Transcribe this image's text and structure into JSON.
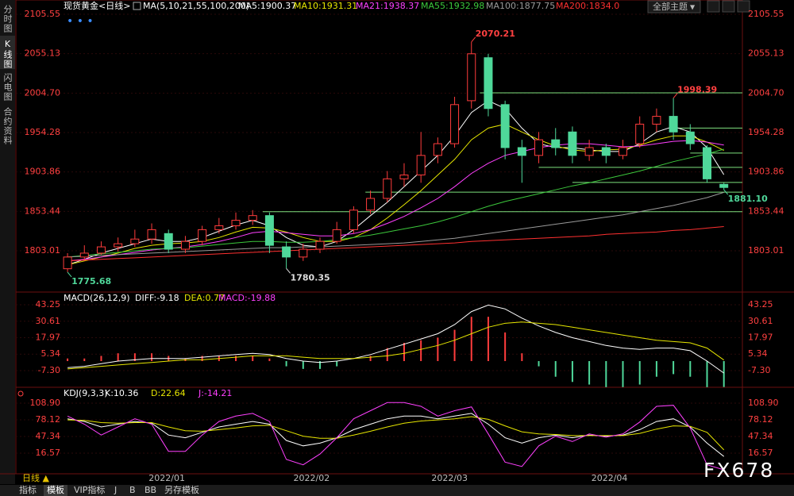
{
  "ui": {
    "sidebar": [
      "分时图",
      "K线图",
      "闪电图",
      "合约资料"
    ],
    "theme_button": "全部主题",
    "period": "日线 ▲",
    "tabs": [
      "指标",
      "模板",
      "VIP指标",
      "J",
      "B",
      "BB",
      "另存模板"
    ],
    "watermark": "FX678"
  },
  "chart_data": [
    {
      "type": "candlestick",
      "title": "现货黄金<日线>",
      "subtitle": "MA(5,10,21,55,100,200)",
      "up_color": "#ff3c3c",
      "down_color": "#4fd89a",
      "grid": true,
      "xlim": [
        -3.07,
        40.1
      ],
      "ylim": [
        1750.2,
        2115.7
      ],
      "yticks": [
        1803.01,
        1853.44,
        1903.86,
        1954.28,
        {
          "value": 2004.7,
          "label": "2004.70"
        },
        2055.13,
        2105.55
      ],
      "open": [
        1780,
        1795,
        1800,
        1808,
        1812,
        1818,
        1825,
        1805,
        1815,
        1830,
        1835,
        1842,
        1848,
        1808,
        1795,
        1805,
        1815,
        1830,
        1855,
        1870,
        1895,
        1900,
        1925,
        1940,
        1995,
        2050,
        1990,
        1935,
        1925,
        1945,
        1955,
        1925,
        1935,
        1925,
        1940,
        1965,
        1975,
        1955,
        1935,
        1888
      ],
      "high": [
        1800,
        1810,
        1815,
        1820,
        1830,
        1838,
        1830,
        1822,
        1835,
        1845,
        1852,
        1855,
        1852,
        1815,
        1812,
        1820,
        1840,
        1860,
        1880,
        1905,
        1915,
        1955,
        1948,
        2000,
        2070.21,
        2055,
        1995,
        1945,
        1955,
        1960,
        1962,
        1945,
        1940,
        1945,
        1975,
        1985,
        1998.39,
        1965,
        1938,
        1890
      ],
      "low": [
        1775.68,
        1790,
        1798,
        1802,
        1808,
        1812,
        1800,
        1800,
        1810,
        1825,
        1830,
        1836,
        1800,
        1780.35,
        1790,
        1800,
        1812,
        1825,
        1850,
        1865,
        1885,
        1890,
        1915,
        1935,
        1985,
        1975,
        1920,
        1890,
        1915,
        1925,
        1915,
        1918,
        1915,
        1920,
        1935,
        1955,
        1945,
        1932,
        1890,
        1881.1
      ],
      "close": [
        1795,
        1800,
        1808,
        1812,
        1818,
        1830,
        1805,
        1815,
        1830,
        1835,
        1842,
        1848,
        1810,
        1795,
        1805,
        1815,
        1830,
        1855,
        1870,
        1895,
        1900,
        1925,
        1940,
        1990,
        2055,
        1985,
        1935,
        1925,
        1945,
        1935,
        1925,
        1935,
        1925,
        1935,
        1965,
        1975,
        1955,
        1940,
        1895,
        1884
      ],
      "series": [
        {
          "name": "MA5:1900.37",
          "color": "#ffffff",
          "values": [
            1785,
            1792,
            1800,
            1806,
            1812,
            1818,
            1815,
            1815,
            1820,
            1828,
            1836,
            1842,
            1835,
            1820,
            1810,
            1808,
            1815,
            1830,
            1848,
            1865,
            1885,
            1905,
            1925,
            1950,
            1980,
            1995,
            1985,
            1960,
            1940,
            1935,
            1935,
            1932,
            1930,
            1930,
            1940,
            1955,
            1962,
            1955,
            1935,
            1900.37
          ]
        },
        {
          "name": "MA10:1931.31",
          "color": "#e6e600",
          "values": [
            1785,
            1790,
            1795,
            1800,
            1806,
            1810,
            1812,
            1813,
            1815,
            1820,
            1827,
            1833,
            1832,
            1827,
            1820,
            1815,
            1815,
            1820,
            1830,
            1845,
            1862,
            1880,
            1900,
            1920,
            1945,
            1960,
            1965,
            1955,
            1945,
            1937,
            1932,
            1930,
            1932,
            1933,
            1938,
            1945,
            1950,
            1950,
            1942,
            1931.31
          ]
        },
        {
          "name": "MA21:1938.37",
          "color": "#ff40ff",
          "values": [
            1790,
            1792,
            1795,
            1798,
            1801,
            1804,
            1806,
            1808,
            1811,
            1815,
            1820,
            1826,
            1828,
            1826,
            1824,
            1822,
            1822,
            1825,
            1830,
            1838,
            1847,
            1858,
            1870,
            1885,
            1902,
            1915,
            1925,
            1930,
            1935,
            1938,
            1940,
            1940,
            1938,
            1936,
            1937,
            1940,
            1943,
            1944,
            1942,
            1938.37
          ]
        },
        {
          "name": "MA55:1932.98",
          "color": "#3cc83c",
          "values": [
            1795,
            1797,
            1799,
            1801,
            1803,
            1805,
            1806,
            1807,
            1809,
            1811,
            1813,
            1815,
            1815,
            1814,
            1814,
            1815,
            1817,
            1820,
            1823,
            1827,
            1831,
            1835,
            1840,
            1846,
            1853,
            1860,
            1866,
            1871,
            1876,
            1881,
            1886,
            1890,
            1895,
            1900,
            1905,
            1911,
            1917,
            1922,
            1927,
            1932.98
          ]
        },
        {
          "name": "MA100:1877.75",
          "color": "#9a9a9a",
          "values": [
            1795,
            1796,
            1797,
            1798,
            1799,
            1800,
            1801,
            1802,
            1803,
            1804,
            1805,
            1806,
            1807,
            1807,
            1808,
            1808,
            1809,
            1810,
            1811,
            1812,
            1813,
            1815,
            1817,
            1819,
            1822,
            1825,
            1828,
            1831,
            1834,
            1837,
            1840,
            1843,
            1846,
            1849,
            1853,
            1857,
            1861,
            1866,
            1871,
            1877.75
          ]
        },
        {
          "name": "MA200:1834.0",
          "color": "#ff3030",
          "values": [
            1790,
            1791,
            1792,
            1793,
            1794,
            1795,
            1796,
            1797,
            1798,
            1799,
            1800,
            1801,
            1802,
            1803,
            1804,
            1805,
            1806,
            1807,
            1808,
            1809,
            1810,
            1811,
            1812,
            1813,
            1815,
            1816,
            1817,
            1818,
            1819,
            1820,
            1821,
            1822,
            1824,
            1825,
            1826,
            1827,
            1829,
            1830,
            1832,
            1834
          ]
        }
      ],
      "annotations": [
        {
          "x": 24,
          "value": 2070.21,
          "label": "2070.21",
          "color": "#ff4040",
          "position": "above"
        },
        {
          "x": 36,
          "value": 1998.39,
          "label": "1998.39",
          "color": "#ff4040",
          "position": "above"
        },
        {
          "x": 39,
          "value": 1881.1,
          "label": "1881.10",
          "color": "#4fd89a",
          "position": "below"
        },
        {
          "x": 0,
          "value": 1775.68,
          "label": "1775.68",
          "color": "#4fd89a",
          "position": "below"
        },
        {
          "x": 13,
          "value": 1780.35,
          "label": "1780.35",
          "color": "#dddddd",
          "position": "below"
        }
      ],
      "hlines": [
        {
          "x": 24.5,
          "value": 2005
        },
        {
          "x": 36,
          "value": 1960
        },
        {
          "x": 37,
          "value": 1928
        },
        {
          "x": 28,
          "value": 1909.7
        },
        {
          "x": 30,
          "value": 1890.4
        },
        {
          "x": 17.7,
          "value": 1878
        },
        {
          "x": 11.6,
          "value": 1853
        }
      ],
      "hline_color": "#7ee07e"
    },
    {
      "type": "macd",
      "title": "MACD(26,12,9)",
      "grid": true,
      "xlim": [
        -3.07,
        40.1
      ],
      "ylim": [
        -21.31,
        51.78
      ],
      "yticks": [
        {
          "value": -7.3,
          "label": "-7.30"
        },
        5.34,
        17.97,
        30.61,
        43.25
      ],
      "series": [
        {
          "name": "DIFF:-9.18",
          "color": "#ffffff",
          "values": [
            -5,
            -4,
            -2,
            0,
            1,
            2,
            2,
            2,
            3,
            4,
            5,
            6,
            5,
            2,
            0,
            -1,
            0,
            2,
            5,
            9,
            13,
            17,
            21,
            28,
            38,
            43,
            40,
            33,
            27,
            22,
            18,
            15,
            12,
            10,
            9,
            10,
            10,
            8,
            0,
            -9.18
          ]
        },
        {
          "name": "DEA:0.77",
          "color": "#e6e600",
          "values": [
            -6,
            -5,
            -4,
            -3,
            -2,
            -1,
            0,
            1,
            1,
            2,
            3,
            4,
            4,
            4,
            3,
            2,
            2,
            2,
            3,
            4,
            6,
            9,
            12,
            16,
            21,
            26,
            29,
            30,
            29,
            28,
            26,
            24,
            22,
            20,
            18,
            16,
            15,
            14,
            10,
            0.77
          ]
        },
        {
          "name": "MACD:-19.88",
          "color": "#ff40ff",
          "kind": "bar",
          "up_color": "#ff3c3c",
          "down_color": "#4fd89a",
          "values": [
            2,
            2,
            4,
            6,
            6,
            6,
            4,
            2,
            4,
            4,
            4,
            4,
            2,
            -4,
            -6,
            -6,
            -4,
            0,
            4,
            10,
            14,
            16,
            18,
            24,
            34,
            34,
            22,
            6,
            -4,
            -12,
            -16,
            -18,
            -20,
            -20,
            -18,
            -12,
            -10,
            -12,
            -20,
            -19.88
          ]
        }
      ]
    },
    {
      "type": "line",
      "title": "KDJ(9,3,3)",
      "grid": true,
      "xlim": [
        -3.07,
        40.1
      ],
      "ylim": [
        -21.55,
        139.7
      ],
      "yticks": [
        16.57,
        47.34,
        78.12,
        {
          "value": 108.9,
          "label": "108.90"
        }
      ],
      "xticks": [
        {
          "value": 5.9,
          "label": "2022/01"
        },
        {
          "value": 14.5,
          "label": "2022/02"
        },
        {
          "value": 22.7,
          "label": "2022/03"
        },
        {
          "value": 32.2,
          "label": "2022/04"
        }
      ],
      "series": [
        {
          "name": "K:10.36",
          "color": "#ffffff",
          "values": [
            80,
            75,
            65,
            70,
            75,
            72,
            50,
            45,
            55,
            65,
            70,
            75,
            70,
            40,
            30,
            35,
            45,
            60,
            70,
            80,
            85,
            85,
            80,
            85,
            90,
            70,
            45,
            35,
            45,
            50,
            45,
            50,
            48,
            50,
            60,
            75,
            80,
            65,
            35,
            10.36
          ]
        },
        {
          "name": "D:22.64",
          "color": "#e6e600",
          "values": [
            78,
            77,
            73,
            72,
            73,
            73,
            65,
            58,
            57,
            60,
            63,
            67,
            68,
            58,
            48,
            44,
            44,
            50,
            57,
            65,
            72,
            76,
            78,
            80,
            84,
            79,
            67,
            56,
            52,
            51,
            49,
            49,
            49,
            49,
            53,
            61,
            67,
            66,
            55,
            22.64
          ]
        },
        {
          "name": "J:-14.21",
          "color": "#ff40ff",
          "values": [
            85,
            70,
            50,
            65,
            80,
            70,
            20,
            20,
            50,
            75,
            85,
            90,
            75,
            5,
            -5,
            15,
            45,
            80,
            95,
            110,
            110,
            103,
            85,
            95,
            102,
            52,
            0,
            -8,
            30,
            48,
            38,
            52,
            46,
            52,
            74,
            103,
            105,
            63,
            -5,
            -14.21
          ]
        }
      ]
    }
  ]
}
